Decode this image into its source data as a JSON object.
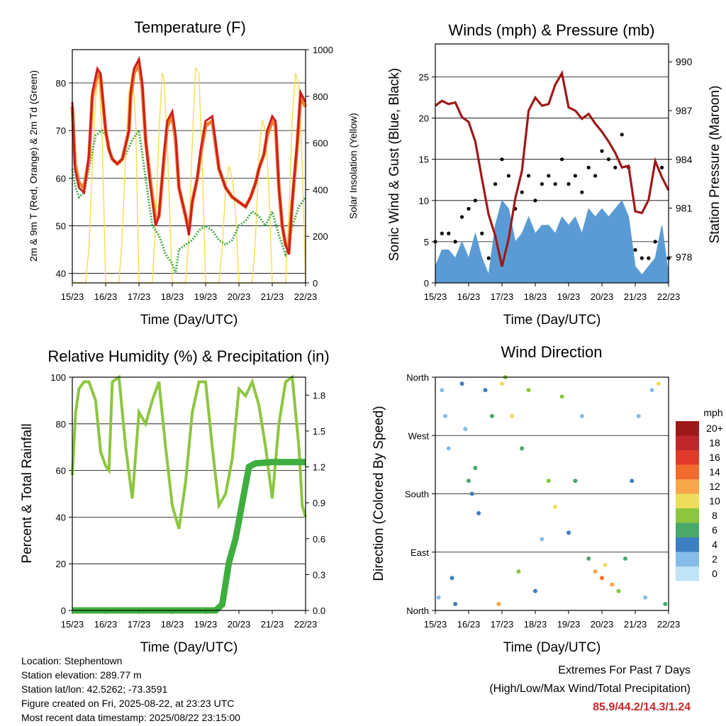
{
  "tick_labels": [
    "15/23",
    "16/23",
    "17/23",
    "18/23",
    "19/23",
    "20/23",
    "21/23",
    "22/23"
  ],
  "xlabel": "Time (Day/UTC)",
  "footer": {
    "location": "Location: Stephentown",
    "elevation": "Station elevation: 289.77 m",
    "latlon": "Station lat/lon: 42.5262; -73.3591",
    "created": "Figure created on Fri, 2025-08-22, at 23:23 UTC",
    "recent": "Most recent data timestamp: 2025/08/22 23:15:00"
  },
  "extremes": {
    "title": "Extremes For Past 7 Days",
    "subtitle": "(High/Low/Max Wind/Total Precipitation)",
    "values": "85.9/44.2/14.3/1.24"
  },
  "colors": {
    "temp2m": "#cc1f1f",
    "temp9m": "#f08030",
    "dewpoint": "#4caf50",
    "solar": "#f5dc50",
    "wind": "#5b9bd5",
    "gust": "#000000",
    "pressure": "#a01818",
    "rh": "#8cc63f",
    "precip": "#3fae3f"
  },
  "chart_data": [
    {
      "type": "line",
      "title": "Temperature (F)",
      "xlabel": "Time (Day/UTC)",
      "ylabel": "2m & 9m T (Red, Orange) & 2m Td (Green)",
      "ylabel_right": "Solar Insolation (Yellow)",
      "xlim": [
        0,
        7
      ],
      "ylim": [
        38,
        87
      ],
      "yticks": [
        40,
        50,
        60,
        70,
        80
      ],
      "ylim_right": [
        0,
        1000
      ],
      "yticks_right": [
        0,
        200,
        400,
        600,
        800,
        1000
      ],
      "grid": true,
      "series": [
        {
          "name": "2m T",
          "x": [
            0,
            0.08,
            0.2,
            0.35,
            0.5,
            0.6,
            0.75,
            0.85,
            1.0,
            1.1,
            1.2,
            1.35,
            1.5,
            1.6,
            1.7,
            1.75,
            1.85,
            2.0,
            2.1,
            2.2,
            2.35,
            2.5,
            2.6,
            2.75,
            2.85,
            3.0,
            3.1,
            3.2,
            3.3,
            3.4,
            3.5,
            3.6,
            3.75,
            3.85,
            4.0,
            4.2,
            4.4,
            4.6,
            4.8,
            5.0,
            5.2,
            5.35,
            5.5,
            5.6,
            5.75,
            5.85,
            6.0,
            6.1,
            6.2,
            6.3,
            6.4,
            6.5,
            6.6,
            6.75,
            6.85,
            7.0
          ],
          "y": [
            76,
            62,
            58,
            57,
            65,
            78,
            83,
            82,
            70,
            66,
            64,
            63,
            64,
            67,
            70,
            78,
            83,
            85,
            80,
            68,
            58,
            50,
            52,
            65,
            72,
            74,
            69,
            58,
            55,
            52,
            48,
            55,
            60,
            66,
            72,
            73,
            62,
            58,
            56,
            55,
            54,
            56,
            59,
            62,
            65,
            70,
            73,
            72,
            58,
            50,
            46,
            44,
            55,
            68,
            78,
            76
          ]
        },
        {
          "name": "9m T",
          "x": [
            0,
            0.08,
            0.2,
            0.35,
            0.5,
            0.6,
            0.75,
            0.85,
            1.0,
            1.1,
            1.2,
            1.35,
            1.5,
            1.6,
            1.7,
            1.75,
            1.85,
            2.0,
            2.1,
            2.2,
            2.35,
            2.5,
            2.6,
            2.75,
            2.85,
            3.0,
            3.1,
            3.2,
            3.3,
            3.4,
            3.5,
            3.6,
            3.75,
            3.85,
            4.0,
            4.2,
            4.4,
            4.6,
            4.8,
            5.0,
            5.2,
            5.35,
            5.5,
            5.6,
            5.75,
            5.85,
            6.0,
            6.1,
            6.2,
            6.3,
            6.4,
            6.5,
            6.6,
            6.75,
            6.85,
            7.0
          ],
          "y": [
            75,
            63,
            59,
            58,
            64,
            77,
            82,
            81,
            70,
            66,
            64,
            63,
            64,
            67,
            70,
            77,
            82,
            84,
            79,
            68,
            59,
            51,
            52,
            64,
            71,
            73,
            68,
            58,
            55,
            52,
            49,
            55,
            60,
            65,
            71,
            72,
            62,
            58,
            56,
            55,
            54,
            56,
            59,
            62,
            65,
            69,
            72,
            71,
            58,
            50,
            46,
            45,
            55,
            67,
            77,
            75
          ]
        },
        {
          "name": "2m Td",
          "x": [
            0,
            0.1,
            0.2,
            0.35,
            0.5,
            0.7,
            0.9,
            1.0,
            1.2,
            1.4,
            1.6,
            1.8,
            2.0,
            2.2,
            2.4,
            2.6,
            2.8,
            3.0,
            3.1,
            3.2,
            3.4,
            3.6,
            3.8,
            4.0,
            4.2,
            4.4,
            4.6,
            4.8,
            5.0,
            5.2,
            5.4,
            5.6,
            5.8,
            6.0,
            6.2,
            6.4,
            6.5,
            6.6,
            6.8,
            7.0
          ],
          "y": [
            62,
            58,
            56,
            57,
            62,
            69,
            70,
            69,
            64,
            63,
            65,
            68,
            70,
            60,
            50,
            48,
            44,
            42,
            40,
            45,
            46,
            47,
            49,
            50,
            49,
            47,
            46,
            47,
            50,
            51,
            53,
            52,
            50,
            53,
            48,
            44,
            46,
            50,
            54,
            56
          ]
        },
        {
          "name": "Solar Insolation",
          "axis": "right",
          "x": [
            0,
            0.2,
            0.4,
            0.5,
            0.6,
            0.7,
            0.8,
            0.9,
            1.0,
            1.2,
            1.4,
            1.5,
            1.6,
            1.7,
            1.8,
            1.9,
            2.0,
            2.2,
            2.4,
            2.5,
            2.6,
            2.7,
            2.75,
            2.85,
            3.0,
            3.2,
            3.4,
            3.5,
            3.6,
            3.7,
            3.8,
            3.9,
            4.0,
            4.2,
            4.4,
            4.5,
            4.6,
            4.7,
            4.8,
            4.9,
            5.0,
            5.2,
            5.4,
            5.5,
            5.6,
            5.7,
            5.8,
            5.9,
            6.0,
            6.2,
            6.4,
            6.5,
            6.6,
            6.7,
            6.8,
            6.9,
            7.0
          ],
          "y": [
            0,
            0,
            0,
            150,
            500,
            800,
            900,
            600,
            0,
            0,
            0,
            200,
            550,
            820,
            900,
            700,
            0,
            0,
            0,
            250,
            650,
            900,
            880,
            600,
            0,
            0,
            0,
            200,
            600,
            920,
            900,
            500,
            0,
            0,
            0,
            150,
            400,
            500,
            450,
            300,
            0,
            0,
            0,
            200,
            550,
            700,
            650,
            400,
            0,
            0,
            0,
            300,
            700,
            900,
            850,
            500,
            0
          ]
        }
      ]
    },
    {
      "type": "scatter",
      "title": "Winds (mph) & Pressure (mb)",
      "xlabel": "Time (Day/UTC)",
      "ylabel": "Sonic Wind & Gust (Blue, Black)",
      "ylabel_right": "Station Pressure (Maroon)",
      "xlim": [
        0,
        7
      ],
      "ylim": [
        0,
        29
      ],
      "yticks": [
        0,
        5,
        10,
        15,
        20,
        25
      ],
      "ylim_right": [
        976.4,
        991.1
      ],
      "yticks_right": [
        978,
        981,
        984,
        987,
        990
      ],
      "grid": true,
      "series": [
        {
          "name": "Sonic Wind",
          "x": [
            0,
            0.2,
            0.4,
            0.6,
            0.8,
            1.0,
            1.2,
            1.4,
            1.6,
            1.8,
            2.0,
            2.2,
            2.4,
            2.6,
            2.8,
            3.0,
            3.2,
            3.4,
            3.6,
            3.8,
            4.0,
            4.2,
            4.4,
            4.6,
            4.8,
            5.0,
            5.2,
            5.4,
            5.6,
            5.8,
            6.0,
            6.2,
            6.4,
            6.6,
            6.8,
            7.0
          ],
          "y": [
            2,
            4,
            4,
            3,
            5,
            3,
            6,
            3,
            1,
            7,
            10,
            9,
            5,
            6,
            8,
            6,
            7,
            7,
            6,
            8,
            7,
            8,
            6,
            9,
            8,
            9,
            8,
            9,
            10,
            8,
            2,
            1,
            2,
            3,
            7,
            1
          ]
        },
        {
          "name": "Gust",
          "x": [
            0,
            0.2,
            0.4,
            0.6,
            0.8,
            1.0,
            1.2,
            1.4,
            1.6,
            1.8,
            2.0,
            2.2,
            2.4,
            2.6,
            2.8,
            3.0,
            3.2,
            3.4,
            3.6,
            3.8,
            4.0,
            4.2,
            4.4,
            4.6,
            4.8,
            5.0,
            5.2,
            5.4,
            5.6,
            5.8,
            6.0,
            6.2,
            6.4,
            6.6,
            6.8,
            7.0
          ],
          "y": [
            5,
            6,
            6,
            5,
            8,
            9,
            10,
            6,
            3,
            12,
            15,
            13,
            9,
            11,
            13,
            10,
            12,
            13,
            12,
            15,
            12,
            13,
            11,
            14,
            13,
            16,
            15,
            14,
            18,
            14,
            4,
            3,
            3,
            5,
            14,
            3
          ]
        },
        {
          "name": "Station Pressure",
          "axis": "right",
          "x": [
            0,
            0.2,
            0.4,
            0.6,
            0.8,
            1.0,
            1.2,
            1.4,
            1.6,
            1.8,
            2.0,
            2.2,
            2.4,
            2.6,
            2.8,
            3.0,
            3.2,
            3.4,
            3.6,
            3.8,
            4.0,
            4.2,
            4.4,
            4.6,
            4.8,
            5.0,
            5.2,
            5.4,
            5.6,
            5.8,
            6.0,
            6.2,
            6.4,
            6.6,
            6.8,
            7.0
          ],
          "y": [
            987.3,
            987.6,
            987.4,
            987.5,
            986.6,
            986.3,
            985.1,
            982.8,
            980.6,
            979.3,
            977.4,
            979.1,
            981.6,
            983.3,
            987.0,
            987.8,
            987.3,
            987.4,
            988.6,
            989.3,
            987.2,
            987.0,
            986.5,
            986.8,
            986.2,
            985.7,
            985.1,
            984.4,
            983.5,
            983.6,
            980.8,
            980.7,
            981.5,
            983.9,
            982.9,
            982.1
          ]
        }
      ]
    },
    {
      "type": "line",
      "title": "Relative Humidity (%) & Precipitation (in)",
      "xlabel": "Time (Day/UTC)",
      "ylabel": "Percent & Total Rainfall",
      "xlim": [
        0,
        7
      ],
      "ylim": [
        0,
        100
      ],
      "yticks": [
        0,
        20,
        40,
        60,
        80,
        100
      ],
      "ylim_right": [
        0,
        1.95
      ],
      "yticks_right": [
        0.0,
        0.3,
        0.6,
        0.9,
        1.2,
        1.5,
        1.8
      ],
      "grid": true,
      "series": [
        {
          "name": "RH",
          "x": [
            0,
            0.1,
            0.2,
            0.35,
            0.5,
            0.7,
            0.85,
            1.0,
            1.1,
            1.2,
            1.4,
            1.6,
            1.8,
            2.0,
            2.2,
            2.4,
            2.6,
            2.8,
            3.0,
            3.2,
            3.4,
            3.6,
            3.8,
            4.0,
            4.2,
            4.4,
            4.6,
            4.8,
            5.0,
            5.2,
            5.4,
            5.6,
            5.8,
            6.0,
            6.2,
            6.4,
            6.6,
            6.8,
            6.9,
            7.0
          ],
          "y": [
            58,
            85,
            95,
            98,
            98,
            90,
            68,
            62,
            60,
            98,
            100,
            70,
            48,
            85,
            80,
            90,
            98,
            70,
            45,
            35,
            55,
            85,
            98,
            98,
            70,
            45,
            50,
            65,
            95,
            92,
            98,
            88,
            70,
            48,
            80,
            98,
            100,
            70,
            45,
            40
          ]
        },
        {
          "name": "Total Rainfall",
          "axis": "right",
          "x": [
            0,
            3.5,
            4.3,
            4.5,
            4.7,
            4.9,
            5.0,
            5.1,
            5.3,
            5.5,
            6.0,
            7.0
          ],
          "y": [
            0,
            0,
            0,
            0.05,
            0.4,
            0.6,
            0.75,
            0.9,
            1.2,
            1.23,
            1.24,
            1.24
          ]
        }
      ]
    },
    {
      "type": "scatter",
      "title": "Wind Direction",
      "xlabel": "Time (Day/UTC)",
      "ylabel": "Direction (Colored By Speed)",
      "xlim": [
        0,
        7
      ],
      "ylim": [
        0,
        360
      ],
      "ytick_labels": [
        "North",
        "East",
        "South",
        "West",
        "North"
      ],
      "yticks": [
        0,
        90,
        180,
        270,
        360
      ],
      "colorbar": {
        "title": "mph",
        "labels": [
          "20+",
          "18",
          "16",
          "14",
          "12",
          "10",
          "8",
          "6",
          "4",
          "2",
          "0"
        ],
        "colors": [
          "#9e1a1a",
          "#c0272d",
          "#e0392b",
          "#f26b2e",
          "#f8a64a",
          "#eddd5b",
          "#8cc63f",
          "#4aa86a",
          "#3d7fc0",
          "#86bde8",
          "#bfe4f7"
        ]
      },
      "series": [
        {
          "name": "Direction",
          "x": [
            0.1,
            0.2,
            0.3,
            0.4,
            0.5,
            0.6,
            0.8,
            0.9,
            1.0,
            1.1,
            1.2,
            1.3,
            1.5,
            1.7,
            1.9,
            2.0,
            2.1,
            2.3,
            2.5,
            2.6,
            2.8,
            3.0,
            3.2,
            3.4,
            3.6,
            3.8,
            4.0,
            4.2,
            4.4,
            4.6,
            4.8,
            5.0,
            5.1,
            5.3,
            5.5,
            5.7,
            5.9,
            6.1,
            6.3,
            6.5,
            6.7,
            6.9
          ],
          "y": [
            20,
            340,
            300,
            250,
            50,
            10,
            350,
            280,
            200,
            180,
            220,
            150,
            340,
            300,
            10,
            350,
            360,
            300,
            60,
            250,
            340,
            30,
            110,
            200,
            160,
            330,
            120,
            200,
            300,
            80,
            60,
            50,
            70,
            40,
            30,
            80,
            200,
            300,
            20,
            340,
            350,
            10
          ],
          "speed": [
            1,
            2,
            1,
            2,
            3,
            4,
            3,
            2,
            5,
            4,
            5,
            3,
            4,
            6,
            12,
            10,
            8,
            9,
            8,
            6,
            7,
            4,
            2,
            7,
            9,
            8,
            3,
            5,
            2,
            6,
            11,
            13,
            9,
            12,
            7,
            5,
            3,
            2,
            1,
            2,
            9,
            6
          ]
        }
      ]
    }
  ]
}
